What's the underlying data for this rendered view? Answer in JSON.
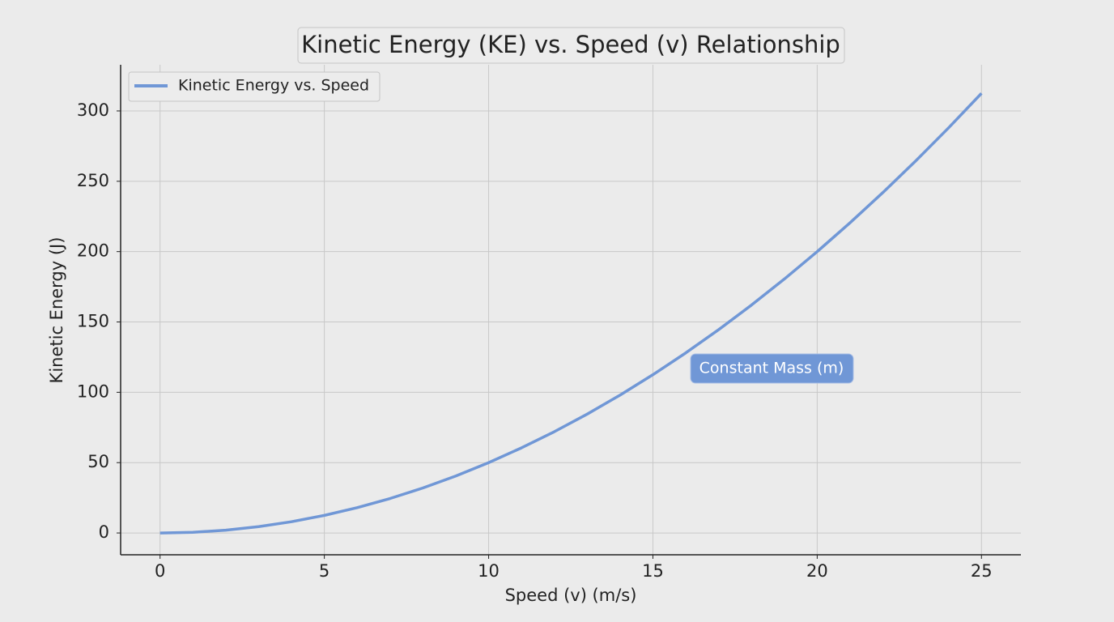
{
  "chart_data": {
    "type": "line",
    "title": "Kinetic Energy (KE) vs. Speed (v) Relationship",
    "xlabel": "Speed (v) (m/s)",
    "ylabel": "Kinetic Energy (J)",
    "annotation": "Constant Mass (m)",
    "x": [
      0,
      1,
      2,
      3,
      4,
      5,
      6,
      7,
      8,
      9,
      10,
      11,
      12,
      13,
      14,
      15,
      16,
      17,
      18,
      19,
      20,
      21,
      22,
      23,
      24,
      25
    ],
    "series": [
      {
        "name": "Kinetic Energy vs. Speed",
        "color": "#7097d6",
        "values": [
          0,
          0.5,
          2,
          4.5,
          8,
          12.5,
          18,
          24.5,
          32,
          40.5,
          50,
          60.5,
          72,
          84.5,
          98,
          112.5,
          128,
          144.5,
          162,
          180.5,
          200,
          220.5,
          242,
          264.5,
          288,
          312.5
        ]
      }
    ],
    "xlim": [
      -1.2,
      26.2
    ],
    "ylim": [
      -15.5,
      332.8
    ],
    "xticks": [
      0,
      5,
      10,
      15,
      20,
      25
    ],
    "yticks": [
      0,
      50,
      100,
      150,
      200,
      250,
      300
    ],
    "grid": true,
    "legend": "upper-left"
  }
}
